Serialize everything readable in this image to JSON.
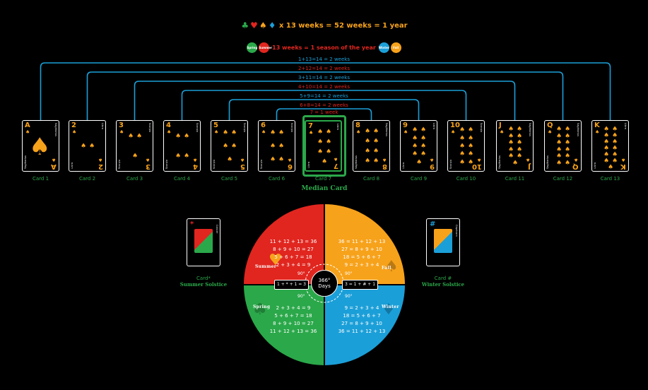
{
  "header": {
    "line1_text": "x 13 weeks  = 52 weeks = 1 year",
    "line2_text": "13 weeks = 1 season of the year",
    "badge_labels": [
      "Spring",
      "Summer",
      "Winter",
      "Fall"
    ]
  },
  "brackets": [
    {
      "text": "1+13=14 = 2 weeks",
      "from": 1,
      "to": 13
    },
    {
      "text": "2+12=14 = 2 weeks",
      "from": 2,
      "to": 12
    },
    {
      "text": "3+11=14 = 2 weeks",
      "from": 3,
      "to": 11
    },
    {
      "text": "4+10=14 = 2 weeks",
      "from": 4,
      "to": 10
    },
    {
      "text": "5+9=14 = 2 weeks",
      "from": 5,
      "to": 9
    },
    {
      "text": "6+8=14 = 2 weeks",
      "from": 6,
      "to": 8
    },
    {
      "text": "7 = 1 week",
      "from": 7,
      "to": 7
    }
  ],
  "cards": [
    {
      "rank": "A",
      "pips": 1,
      "label": "Card 1",
      "sign": "Sagittarius"
    },
    {
      "rank": "2",
      "pips": 2,
      "label": "Card 2",
      "sign": "Libra"
    },
    {
      "rank": "3",
      "pips": 3,
      "label": "Card 3",
      "sign": "Scorpio"
    },
    {
      "rank": "4",
      "pips": 4,
      "label": "Card 4",
      "sign": "Scorpio"
    },
    {
      "rank": "5",
      "pips": 5,
      "label": "Card 5",
      "sign": "Scorpio"
    },
    {
      "rank": "6",
      "pips": 6,
      "label": "Card 6",
      "sign": "Scorpio"
    },
    {
      "rank": "7",
      "pips": 7,
      "label": "Card 7",
      "sign": "Libra"
    },
    {
      "rank": "8",
      "pips": 8,
      "label": "Card 8",
      "sign": "Sagittarius"
    },
    {
      "rank": "9",
      "pips": 9,
      "label": "Card 9",
      "sign": "Libra"
    },
    {
      "rank": "10",
      "pips": 10,
      "label": "Card 10",
      "sign": "Scorpio"
    },
    {
      "rank": "J",
      "pips": 11,
      "label": "Card 11",
      "sign": "Sagittarius"
    },
    {
      "rank": "Q",
      "pips": 12,
      "label": "Card 12",
      "sign": "Sagittarius"
    },
    {
      "rank": "K",
      "pips": 13,
      "label": "Card 13",
      "sign": "Libra"
    }
  ],
  "median_label": "Median Card",
  "side_cards": {
    "left": {
      "symbol": "*",
      "label": "Card*",
      "sublabel": "Summer Solstice",
      "sign": "Cancer",
      "color": "#e0261f"
    },
    "right": {
      "symbol": "#",
      "label": "Card #",
      "sublabel": "Winter Solstice",
      "sign": "Capricorn",
      "color": "#1b9fd8"
    }
  },
  "wheel": {
    "center_top": "366°",
    "center_bottom": "Days",
    "degree_label": "90°",
    "summer": {
      "name": "Summer",
      "color": "#e0261f",
      "equations": [
        "11 + 12 + 13 = 36",
        "8 + 9 + 10 = 27",
        "5 + 6 + 7 = 18",
        "2 + 3 + 4 =  9"
      ]
    },
    "fall": {
      "name": "Fall",
      "color": "#f7a21b",
      "equations": [
        "36 = 11 + 12 + 13",
        "27 = 8 + 9 + 10",
        "18 = 5 + 6 + 7",
        "9 = 2 + 3 + 4"
      ]
    },
    "spring": {
      "name": "Spring",
      "color": "#2ba84a",
      "equations": [
        "2 + 3 + 4 =  9",
        "5 + 6 + 7 = 18",
        "8 + 9 + 10 = 27",
        "11 + 12 + 13 = 36"
      ]
    },
    "winter": {
      "name": "Winter",
      "color": "#1b9fd8",
      "equations": [
        "9 = 2 + 3 + 4",
        "18 = 5 + 6 + 7",
        "27 = 8 + 9 + 10",
        "36 = 11 + 12 + 13"
      ]
    },
    "formula_left": "1 + * + 1 = 3",
    "formula_right": "3 = 1 + # + 1"
  },
  "colors": {
    "spade": "#f7a21b",
    "club": "#2ba84a",
    "heart": "#e0261f",
    "diamond": "#1b9fd8",
    "bracket": "#1b9fd8"
  }
}
